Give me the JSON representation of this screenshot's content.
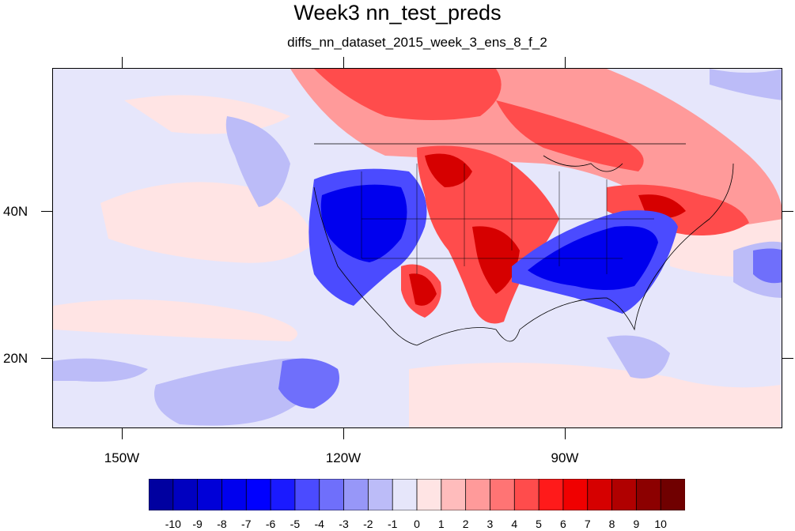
{
  "title": "Week3 nn_test_preds",
  "subtitle": "diffs_nn_dataset_2015_week_3_ens_8_f_2",
  "lon_labels": [
    "150W",
    "120W",
    "90W"
  ],
  "lat_labels": [
    "40N",
    "20N"
  ],
  "colorbar": {
    "labels": [
      "-10",
      "-9",
      "-8",
      "-7",
      "-6",
      "-5",
      "-4",
      "-3",
      "-2",
      "-1",
      "0",
      "1",
      "2",
      "3",
      "4",
      "5",
      "6",
      "7",
      "8",
      "9",
      "10"
    ],
    "colors": [
      "#0000a0",
      "#0000c0",
      "#0000d8",
      "#0000ee",
      "#0000ff",
      "#1a1aff",
      "#4b4bff",
      "#6f6ffb",
      "#9797f8",
      "#bcbcf8",
      "#e6e6fa",
      "#ffe4e4",
      "#ffbcbc",
      "#ff9a9a",
      "#ff7474",
      "#ff4c4c",
      "#ff1a1a",
      "#f00000",
      "#d60000",
      "#b00000",
      "#8c0000",
      "#700000"
    ]
  }
}
